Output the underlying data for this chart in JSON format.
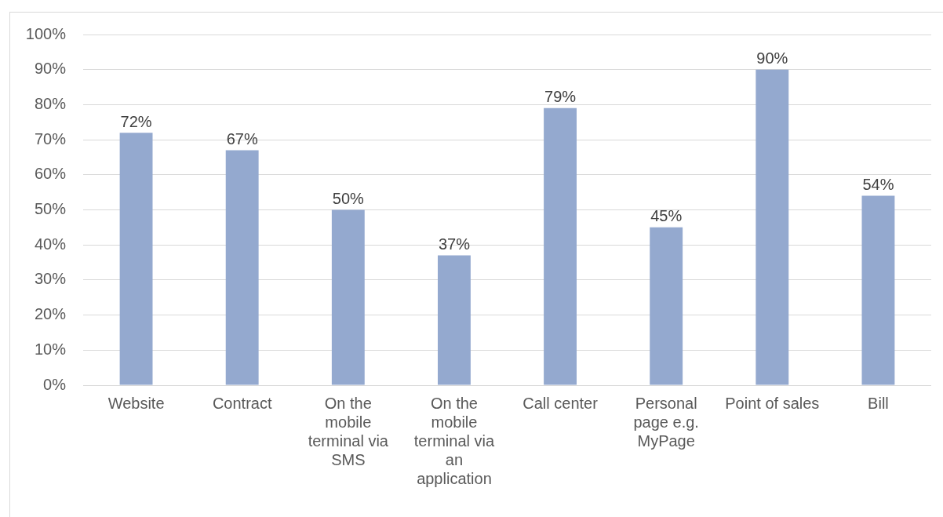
{
  "chart_data": {
    "type": "bar",
    "categories": [
      "Website",
      "Contract",
      "On the mobile terminal via SMS",
      "On the mobile terminal via an application",
      "Call center",
      "Personal page e.g. MyPage",
      "Point of sales",
      "Bill"
    ],
    "values": [
      72,
      67,
      50,
      37,
      79,
      45,
      90,
      54
    ],
    "value_labels": [
      "72%",
      "67%",
      "50%",
      "37%",
      "79%",
      "45%",
      "90%",
      "54%"
    ],
    "color": "#94a9cf",
    "ylim": [
      0,
      100
    ],
    "yticks": [
      {
        "value": 0,
        "label": "0%"
      },
      {
        "value": 10,
        "label": "10%"
      },
      {
        "value": 20,
        "label": "20%"
      },
      {
        "value": 30,
        "label": "30%"
      },
      {
        "value": 40,
        "label": "40%"
      },
      {
        "value": 50,
        "label": "50%"
      },
      {
        "value": 60,
        "label": "60%"
      },
      {
        "value": 70,
        "label": "70%"
      },
      {
        "value": 80,
        "label": "80%"
      },
      {
        "value": 90,
        "label": "90%"
      },
      {
        "value": 100,
        "label": "100%"
      }
    ],
    "grid": "y"
  }
}
